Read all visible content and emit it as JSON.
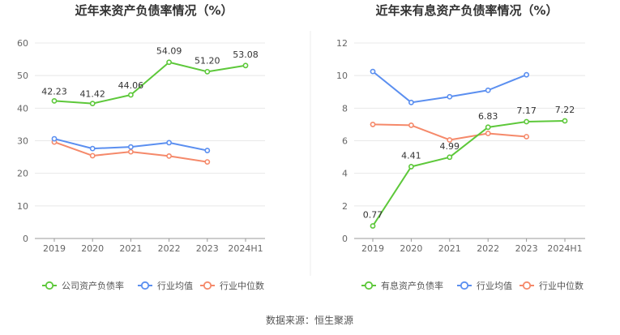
{
  "source": "数据来源：恒生聚源",
  "colors": {
    "company": "#5dc83a",
    "industry_avg": "#5b8ff0",
    "industry_median": "#f5896a",
    "grid": "#e8e8e8",
    "axis": "#999999"
  },
  "chart_data": [
    {
      "type": "line",
      "title": "近年来资产负债率情况（%）",
      "categories": [
        "2019",
        "2020",
        "2021",
        "2022",
        "2023",
        "2024H1"
      ],
      "ylim": [
        0,
        60
      ],
      "yticks": [
        0,
        10,
        20,
        30,
        40,
        50,
        60
      ],
      "series": [
        {
          "name": "公司资产负债率",
          "key": "company",
          "labeled": true,
          "values": [
            42.23,
            41.42,
            44.06,
            54.09,
            51.2,
            53.08
          ],
          "labels": [
            "42.23",
            "41.42",
            "44.06",
            "54.09",
            "51.20",
            "53.08"
          ]
        },
        {
          "name": "行业均值",
          "key": "industry_avg",
          "labeled": false,
          "values": [
            30.6,
            27.6,
            28.1,
            29.4,
            27.0,
            null
          ]
        },
        {
          "name": "行业中位数",
          "key": "industry_median",
          "labeled": false,
          "values": [
            29.6,
            25.4,
            26.6,
            25.3,
            23.5,
            null
          ]
        }
      ]
    },
    {
      "type": "line",
      "title": "近年来有息资产负债率情况（%）",
      "categories": [
        "2019",
        "2020",
        "2021",
        "2022",
        "2023",
        "2024H1"
      ],
      "ylim": [
        0,
        12
      ],
      "yticks": [
        0,
        2,
        4,
        6,
        8,
        10,
        12
      ],
      "series": [
        {
          "name": "有息资产负债率",
          "key": "company",
          "labeled": true,
          "values": [
            0.77,
            4.41,
            4.99,
            6.83,
            7.17,
            7.22
          ],
          "labels": [
            "0.77",
            "4.41",
            "4.99",
            "6.83",
            "7.17",
            "7.22"
          ]
        },
        {
          "name": "行业均值",
          "key": "industry_avg",
          "labeled": false,
          "values": [
            10.25,
            8.35,
            8.7,
            9.1,
            10.05,
            null
          ]
        },
        {
          "name": "行业中位数",
          "key": "industry_median",
          "labeled": false,
          "values": [
            7.0,
            6.95,
            6.05,
            6.45,
            6.25,
            null
          ]
        }
      ]
    }
  ]
}
